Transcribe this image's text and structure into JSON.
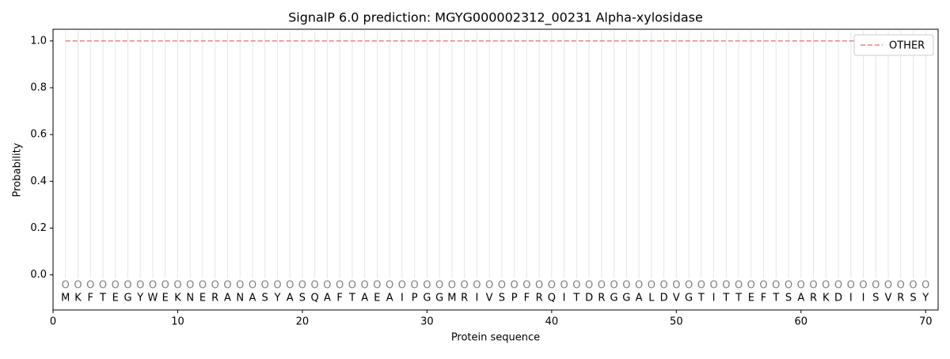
{
  "chart_data": {
    "type": "line",
    "title": "SignalP 6.0 prediction: MGYG000002312_00231 Alpha-xylosidase",
    "xlabel": "Protein sequence",
    "ylabel": "Probability",
    "x": [
      1,
      2,
      3,
      4,
      5,
      6,
      7,
      8,
      9,
      10,
      11,
      12,
      13,
      14,
      15,
      16,
      17,
      18,
      19,
      20,
      21,
      22,
      23,
      24,
      25,
      26,
      27,
      28,
      29,
      30,
      31,
      32,
      33,
      34,
      35,
      36,
      37,
      38,
      39,
      40,
      41,
      42,
      43,
      44,
      45,
      46,
      47,
      48,
      49,
      50,
      51,
      52,
      53,
      54,
      55,
      56,
      57,
      58,
      59,
      60,
      61,
      62,
      63,
      64,
      65,
      66,
      67,
      68,
      69,
      70
    ],
    "series": [
      {
        "name": "OTHER",
        "color": "#f08080",
        "dashed": true,
        "values": [
          1,
          1,
          1,
          1,
          1,
          1,
          1,
          1,
          1,
          1,
          1,
          1,
          1,
          1,
          1,
          1,
          1,
          1,
          1,
          1,
          1,
          1,
          1,
          1,
          1,
          1,
          1,
          1,
          1,
          1,
          1,
          1,
          1,
          1,
          1,
          1,
          1,
          1,
          1,
          1,
          1,
          1,
          1,
          1,
          1,
          1,
          1,
          1,
          1,
          1,
          1,
          1,
          1,
          1,
          1,
          1,
          1,
          1,
          1,
          1,
          1,
          1,
          1,
          1,
          1,
          1,
          1,
          1,
          1,
          1
        ]
      }
    ],
    "sequence": [
      "M",
      "K",
      "F",
      "T",
      "E",
      "G",
      "Y",
      "W",
      "E",
      "K",
      "N",
      "E",
      "R",
      "A",
      "N",
      "A",
      "S",
      "Y",
      "A",
      "S",
      "Q",
      "A",
      "F",
      "T",
      "A",
      "E",
      "A",
      "I",
      "P",
      "G",
      "G",
      "M",
      "R",
      "I",
      "V",
      "S",
      "P",
      "F",
      "R",
      "Q",
      "I",
      "T",
      "D",
      "R",
      "G",
      "G",
      "A",
      "L",
      "D",
      "V",
      "G",
      "T",
      "I",
      "T",
      "T",
      "E",
      "F",
      "T",
      "S",
      "A",
      "R",
      "K",
      "D",
      "I",
      "I",
      "S",
      "V",
      "R",
      "S",
      "Y"
    ],
    "predictions": [
      "O",
      "O",
      "O",
      "O",
      "O",
      "O",
      "O",
      "O",
      "O",
      "O",
      "O",
      "O",
      "O",
      "O",
      "O",
      "O",
      "O",
      "O",
      "O",
      "O",
      "O",
      "O",
      "O",
      "O",
      "O",
      "O",
      "O",
      "O",
      "O",
      "O",
      "O",
      "O",
      "O",
      "O",
      "O",
      "O",
      "O",
      "O",
      "O",
      "O",
      "O",
      "O",
      "O",
      "O",
      "O",
      "O",
      "O",
      "O",
      "O",
      "O",
      "O",
      "O",
      "O",
      "O",
      "O",
      "O",
      "O",
      "O",
      "O",
      "O",
      "O",
      "O",
      "O",
      "O",
      "O",
      "O",
      "O",
      "O",
      "O",
      "O"
    ],
    "xlim": [
      0,
      71
    ],
    "ylim": [
      -0.15,
      1.05
    ],
    "xticks": [
      0,
      10,
      20,
      30,
      40,
      50,
      60,
      70
    ],
    "yticks": [
      {
        "value": 0,
        "label": "0.0"
      },
      {
        "value": 0.2,
        "label": "0.2"
      },
      {
        "value": 0.4,
        "label": "0.4"
      },
      {
        "value": 0.6,
        "label": "0.6"
      },
      {
        "value": 0.8,
        "label": "0.8"
      },
      {
        "value": 1,
        "label": "1.0"
      }
    ],
    "legend": "upper right"
  }
}
